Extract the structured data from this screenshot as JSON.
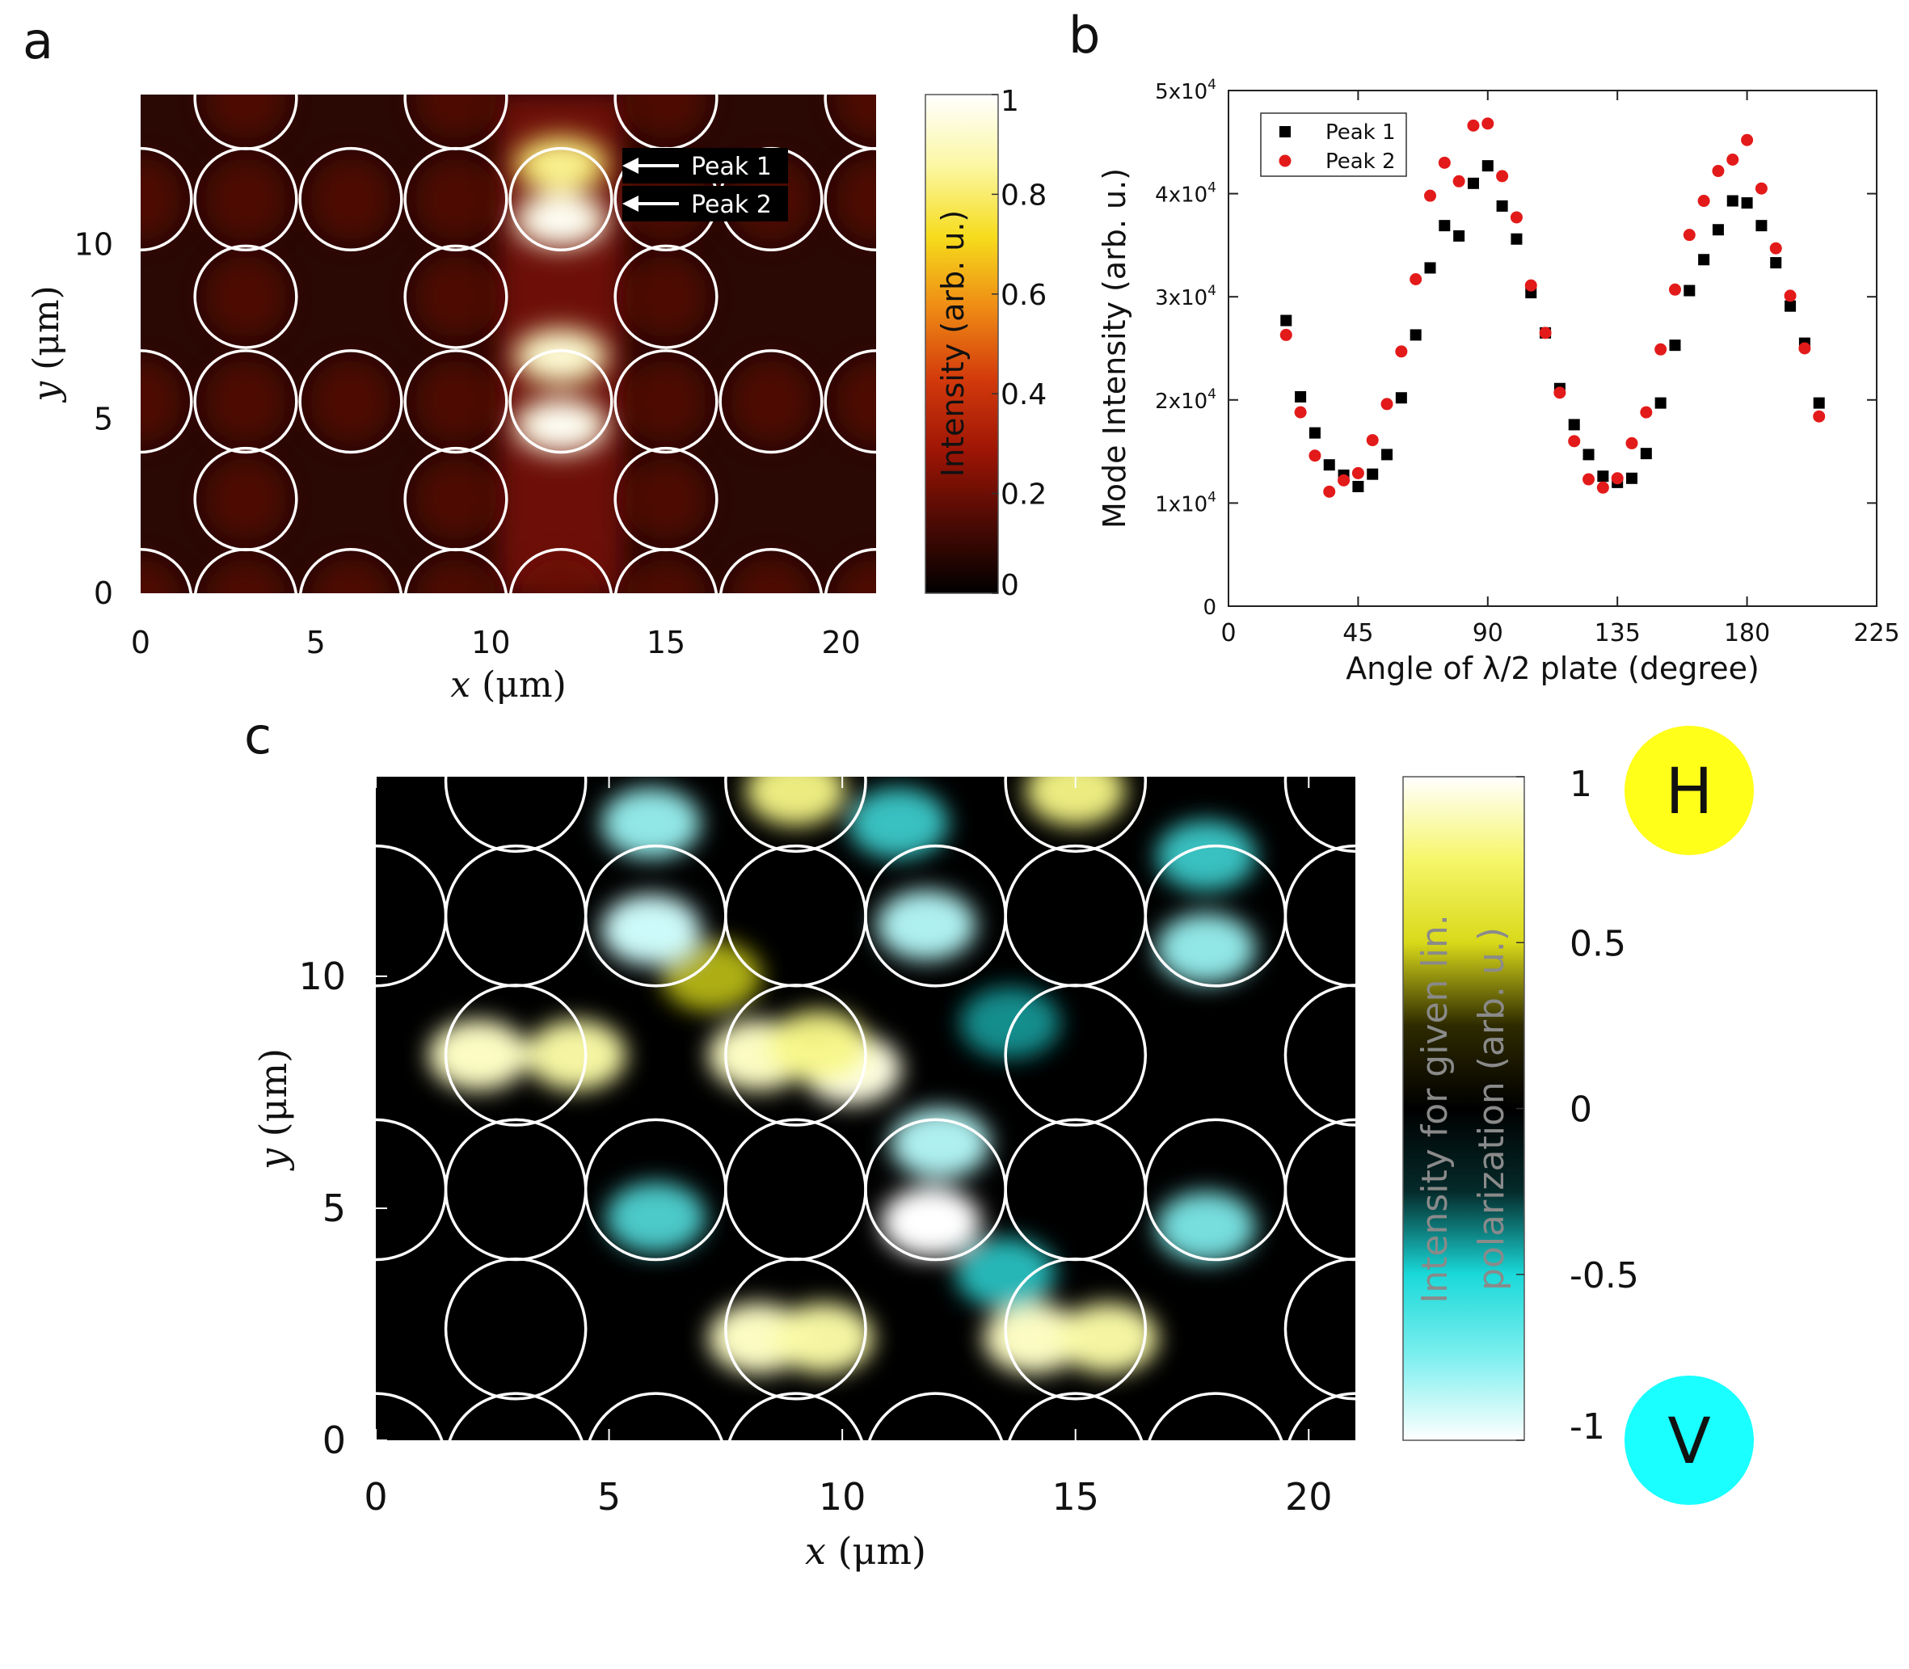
{
  "chart_data": [
    {
      "panel": "a",
      "type": "heatmap",
      "panel_label": "a",
      "xlabel_var": "x",
      "xlabel_unit": " (μm)",
      "ylabel_var": "y",
      "ylabel_unit": " (μm)",
      "xlim": [
        0,
        21
      ],
      "ylim": [
        0,
        14.3
      ],
      "xticks": [
        0,
        5,
        10,
        15,
        20
      ],
      "yticks": [
        0,
        5,
        10
      ],
      "colorbar": {
        "label": "Intensity (arb. u.)",
        "range": [
          0,
          1
        ],
        "ticks": [
          "0",
          "0.2",
          "0.4",
          "0.6",
          "0.8",
          "1"
        ],
        "colors": [
          "#000000",
          "#4d0a04",
          "#9e1505",
          "#d33a0c",
          "#ef8a14",
          "#f6dc1c",
          "#fbf7a3",
          "#ffffff"
        ]
      },
      "annotations": [
        {
          "text": "Peak 1",
          "x": 12,
          "y": 12.3
        },
        {
          "text": "Peak 2",
          "x": 12,
          "y": 10.7
        }
      ],
      "hot_spots": [
        {
          "x": 12,
          "y": 12.3,
          "value": 0.8
        },
        {
          "x": 12,
          "y": 10.7,
          "value": 0.95
        },
        {
          "x": 12,
          "y": 6.8,
          "value": 0.9
        },
        {
          "x": 12,
          "y": 4.8,
          "value": 0.95
        }
      ],
      "circles": [
        {
          "x": 3,
          "y": 14.2
        },
        {
          "x": 9,
          "y": 14.2
        },
        {
          "x": 15,
          "y": 14.2
        },
        {
          "x": 21,
          "y": 14.2
        },
        {
          "x": 0,
          "y": 11.3
        },
        {
          "x": 3,
          "y": 11.3
        },
        {
          "x": 6,
          "y": 11.3
        },
        {
          "x": 9,
          "y": 11.3
        },
        {
          "x": 12,
          "y": 11.3
        },
        {
          "x": 15,
          "y": 11.3
        },
        {
          "x": 18,
          "y": 11.3
        },
        {
          "x": 21,
          "y": 11.3
        },
        {
          "x": 3,
          "y": 8.5
        },
        {
          "x": 9,
          "y": 8.5
        },
        {
          "x": 15,
          "y": 8.5
        },
        {
          "x": 0,
          "y": 5.5
        },
        {
          "x": 3,
          "y": 5.5
        },
        {
          "x": 6,
          "y": 5.5
        },
        {
          "x": 9,
          "y": 5.5
        },
        {
          "x": 12,
          "y": 5.5
        },
        {
          "x": 15,
          "y": 5.5
        },
        {
          "x": 18,
          "y": 5.5
        },
        {
          "x": 21,
          "y": 5.5
        },
        {
          "x": 3,
          "y": 2.7
        },
        {
          "x": 9,
          "y": 2.7
        },
        {
          "x": 15,
          "y": 2.7
        },
        {
          "x": 0,
          "y": -0.2
        },
        {
          "x": 3,
          "y": -0.2
        },
        {
          "x": 6,
          "y": -0.2
        },
        {
          "x": 9,
          "y": -0.2
        },
        {
          "x": 12,
          "y": -0.2
        },
        {
          "x": 15,
          "y": -0.2
        },
        {
          "x": 18,
          "y": -0.2
        },
        {
          "x": 21,
          "y": -0.2
        }
      ],
      "circle_radius": 1.45
    },
    {
      "panel": "b",
      "type": "scatter",
      "panel_label": "b",
      "xlabel": "Angle of λ/2 plate (degree)",
      "ylabel": "Mode Intensity (arb. u.)",
      "xlim": [
        0,
        225
      ],
      "ylim": [
        0,
        50000
      ],
      "xticks": [
        0,
        45,
        90,
        135,
        180,
        225
      ],
      "yticks": [
        {
          "value": 0,
          "label": "0",
          "exp": ""
        },
        {
          "value": 10000,
          "label": "1x10",
          "exp": "4"
        },
        {
          "value": 20000,
          "label": "2x10",
          "exp": "4"
        },
        {
          "value": 30000,
          "label": "3x10",
          "exp": "4"
        },
        {
          "value": 40000,
          "label": "4x10",
          "exp": "4"
        },
        {
          "value": 50000,
          "label": "5x10",
          "exp": "4"
        }
      ],
      "legend_position": "top-left",
      "series": [
        {
          "name": "Peak 1",
          "marker": "square",
          "color": "#000000",
          "x": [
            20,
            25,
            30,
            35,
            40,
            45,
            50,
            55,
            60,
            65,
            70,
            75,
            80,
            85,
            90,
            95,
            100,
            105,
            110,
            115,
            120,
            125,
            130,
            135,
            140,
            145,
            150,
            155,
            160,
            165,
            170,
            175,
            180,
            185,
            190,
            195,
            200,
            205
          ],
          "y": [
            27700,
            20300,
            16800,
            13700,
            12700,
            11600,
            12800,
            14700,
            20200,
            26300,
            32800,
            36900,
            35900,
            41000,
            42700,
            38800,
            35600,
            30400,
            26500,
            21100,
            17600,
            14700,
            12600,
            12000,
            12400,
            14800,
            19700,
            25300,
            30600,
            33600,
            36500,
            39300,
            39100,
            36900,
            33300,
            29100,
            25500,
            19700
          ]
        },
        {
          "name": "Peak 2",
          "marker": "circle",
          "color": "#e31a1a",
          "x": [
            20,
            25,
            30,
            35,
            40,
            45,
            50,
            55,
            60,
            65,
            70,
            75,
            80,
            85,
            90,
            95,
            100,
            105,
            110,
            115,
            120,
            125,
            130,
            135,
            140,
            145,
            150,
            155,
            160,
            165,
            170,
            175,
            180,
            185,
            190,
            195,
            200,
            205
          ],
          "y": [
            26300,
            18800,
            14600,
            11100,
            12200,
            12900,
            16100,
            19600,
            24700,
            31700,
            39800,
            43000,
            41200,
            46600,
            46800,
            41700,
            37700,
            31100,
            26500,
            20700,
            16000,
            12300,
            11500,
            12400,
            15800,
            18800,
            24900,
            30700,
            36000,
            39300,
            42200,
            43300,
            45200,
            40500,
            34700,
            30100,
            25000,
            18400
          ]
        }
      ]
    },
    {
      "panel": "c",
      "type": "heatmap",
      "panel_label": "c",
      "xlabel_var": "x",
      "xlabel_unit": " (μm)",
      "ylabel_var": "y",
      "ylabel_unit": " (μm)",
      "xlim": [
        0,
        21
      ],
      "ylim": [
        0,
        14.3
      ],
      "xticks": [
        0,
        5,
        10,
        15,
        20
      ],
      "yticks": [
        0,
        5,
        10
      ],
      "colorbar": {
        "label_line1": "Intensity for given lin.",
        "label_line2": "polarization (arb. u.)",
        "range": [
          -1,
          1
        ],
        "ticks": [
          "-1",
          "-0.5",
          "0",
          "0.5",
          "1"
        ],
        "colors": [
          "#ffffff",
          "#7fefef",
          "#1ad9d9",
          "#052a2a",
          "#000000",
          "#2e2a00",
          "#d9d91a",
          "#f6f66a",
          "#ffffff"
        ]
      },
      "badges": [
        {
          "text": "H",
          "color": "#ffff1a"
        },
        {
          "text": "V",
          "color": "#1affff"
        }
      ],
      "hot_spots": [
        {
          "x": 2.2,
          "y": 8.3,
          "value": 0.9
        },
        {
          "x": 4.3,
          "y": 8.3,
          "value": 0.85
        },
        {
          "x": 8.2,
          "y": 8.3,
          "value": 0.9
        },
        {
          "x": 10.2,
          "y": 8.0,
          "value": 0.95
        },
        {
          "x": 9.5,
          "y": 8.5,
          "value": 0.8
        },
        {
          "x": 8.2,
          "y": 2.2,
          "value": 0.9
        },
        {
          "x": 9.6,
          "y": 2.2,
          "value": 0.85
        },
        {
          "x": 14.1,
          "y": 2.2,
          "value": 0.9
        },
        {
          "x": 15.7,
          "y": 2.2,
          "value": 0.85
        },
        {
          "x": 9.0,
          "y": 14.0,
          "value": 0.8
        },
        {
          "x": 15.0,
          "y": 14.0,
          "value": 0.8
        },
        {
          "x": 7.2,
          "y": 10.0,
          "value": 0.5
        },
        {
          "x": 5.9,
          "y": 11.0,
          "value": -0.9
        },
        {
          "x": 5.9,
          "y": 13.3,
          "value": -0.8
        },
        {
          "x": 11.8,
          "y": 11.1,
          "value": -0.85
        },
        {
          "x": 11.2,
          "y": 13.3,
          "value": -0.6
        },
        {
          "x": 17.8,
          "y": 10.6,
          "value": -0.8
        },
        {
          "x": 17.8,
          "y": 12.6,
          "value": -0.6
        },
        {
          "x": 12.1,
          "y": 6.4,
          "value": -0.85
        },
        {
          "x": 11.9,
          "y": 4.7,
          "value": -1.0
        },
        {
          "x": 6.0,
          "y": 4.8,
          "value": -0.65
        },
        {
          "x": 17.8,
          "y": 4.6,
          "value": -0.75
        },
        {
          "x": 13.5,
          "y": 3.6,
          "value": -0.55
        },
        {
          "x": 13.6,
          "y": 9.0,
          "value": -0.45
        }
      ],
      "circles": [
        {
          "x": 3,
          "y": 14.2
        },
        {
          "x": 9,
          "y": 14.2
        },
        {
          "x": 15,
          "y": 14.2
        },
        {
          "x": 21,
          "y": 14.2
        },
        {
          "x": 0,
          "y": 11.3
        },
        {
          "x": 3,
          "y": 11.3
        },
        {
          "x": 6,
          "y": 11.3
        },
        {
          "x": 9,
          "y": 11.3
        },
        {
          "x": 12,
          "y": 11.3
        },
        {
          "x": 15,
          "y": 11.3
        },
        {
          "x": 18,
          "y": 11.3
        },
        {
          "x": 21,
          "y": 11.3
        },
        {
          "x": 3,
          "y": 8.3
        },
        {
          "x": 9,
          "y": 8.3
        },
        {
          "x": 15,
          "y": 8.3
        },
        {
          "x": 21,
          "y": 8.3
        },
        {
          "x": 0,
          "y": 5.4
        },
        {
          "x": 3,
          "y": 5.4
        },
        {
          "x": 6,
          "y": 5.4
        },
        {
          "x": 9,
          "y": 5.4
        },
        {
          "x": 12,
          "y": 5.4
        },
        {
          "x": 15,
          "y": 5.4
        },
        {
          "x": 18,
          "y": 5.4
        },
        {
          "x": 21,
          "y": 5.4
        },
        {
          "x": 3,
          "y": 2.4
        },
        {
          "x": 9,
          "y": 2.4
        },
        {
          "x": 15,
          "y": 2.4
        },
        {
          "x": 21,
          "y": 2.4
        },
        {
          "x": 0,
          "y": -0.5
        },
        {
          "x": 3,
          "y": -0.5
        },
        {
          "x": 6,
          "y": -0.5
        },
        {
          "x": 9,
          "y": -0.5
        },
        {
          "x": 12,
          "y": -0.5
        },
        {
          "x": 15,
          "y": -0.5
        },
        {
          "x": 18,
          "y": -0.5
        },
        {
          "x": 21,
          "y": -0.5
        }
      ],
      "circle_radius": 1.5
    }
  ]
}
